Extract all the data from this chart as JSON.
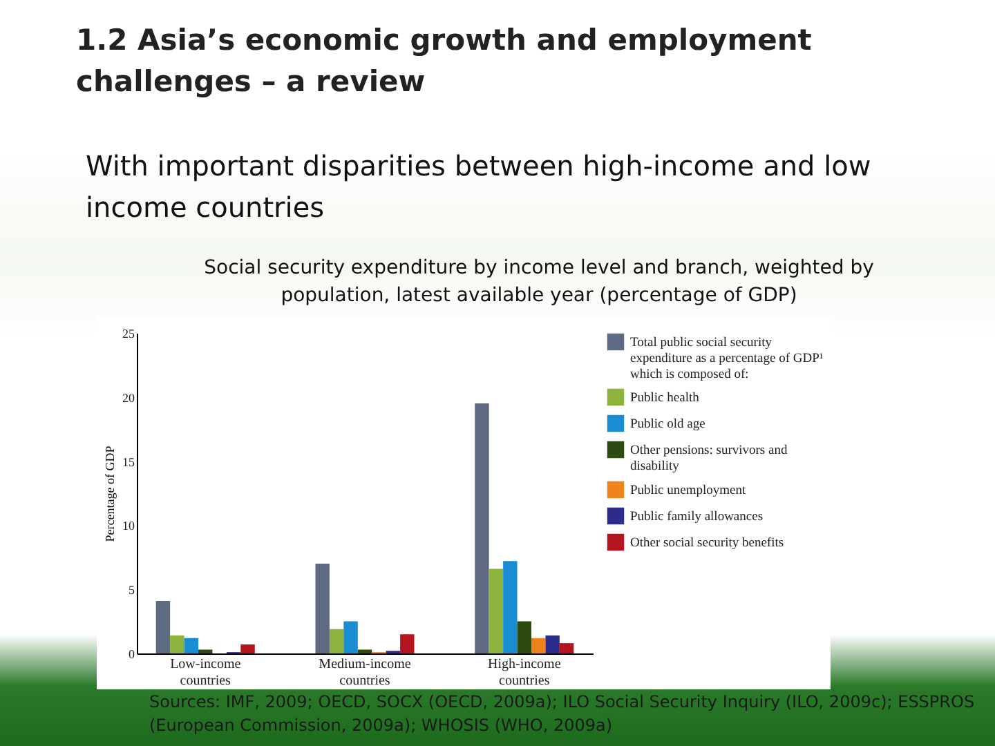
{
  "chart_data": {
    "type": "bar",
    "title": "1.2 Asia’s economic growth and employment challenges – a review",
    "subtitle": "With important disparities between high-income and low income countries",
    "annotations": [
      "Social security expenditure by income level and branch, weighted by population, latest available year (percentage of GDP)",
      "Sources: IMF, 2009; OECD, SOCX (OECD, 2009a); ILO Social Security Inquiry (ILO, 2009c); ESSPROS (European Commission, 2009a); WHOSIS (WHO, 2009a)"
    ],
    "ylabel": "Percentage of GDP",
    "categories": [
      "Low-income countries",
      "Medium-income countries",
      "High-income countries"
    ],
    "series": [
      {
        "name": "Total public social security expenditure as a percentage of GDP¹ which is composed of:",
        "color": "#5f6b82",
        "values": [
          4.1,
          7,
          19.5
        ]
      },
      {
        "name": "Public health",
        "color": "#8cb43c",
        "values": [
          1.4,
          1.9,
          6.6
        ]
      },
      {
        "name": "Public old age",
        "color": "#1a8cd2",
        "values": [
          1.2,
          2.5,
          7.2
        ]
      },
      {
        "name": "Other pensions: survivors and disability",
        "color": "#2f4a10",
        "values": [
          0.3,
          0.3,
          2.5
        ]
      },
      {
        "name": "Public unemployment",
        "color": "#f0821e",
        "values": [
          0,
          0.1,
          1.2
        ]
      },
      {
        "name": "Public family allowances",
        "color": "#2c2c8c",
        "values": [
          0.1,
          0.2,
          1.4
        ]
      },
      {
        "name": "Other social security benefits",
        "color": "#b4141e",
        "values": [
          0.7,
          1.5,
          0.8
        ]
      }
    ],
    "ylim": [
      0,
      25
    ],
    "yticks": [
      0,
      5,
      10,
      15,
      20,
      25
    ],
    "grid": false,
    "legend": "right"
  }
}
